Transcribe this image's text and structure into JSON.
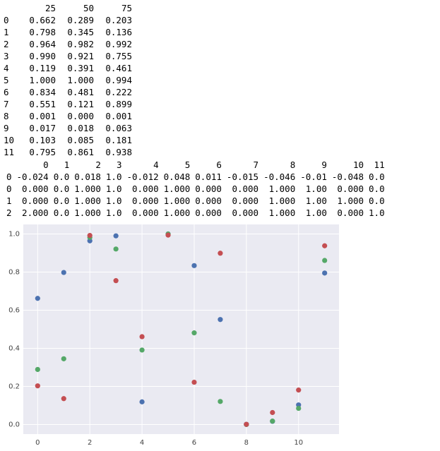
{
  "table1": {
    "header": [
      "25",
      "50",
      "75"
    ],
    "rows": [
      [
        "0",
        "0.662",
        "0.289",
        "0.203"
      ],
      [
        "1",
        "0.798",
        "0.345",
        "0.136"
      ],
      [
        "2",
        "0.964",
        "0.982",
        "0.992"
      ],
      [
        "3",
        "0.990",
        "0.921",
        "0.755"
      ],
      [
        "4",
        "0.119",
        "0.391",
        "0.461"
      ],
      [
        "5",
        "1.000",
        "1.000",
        "0.994"
      ],
      [
        "6",
        "0.834",
        "0.481",
        "0.222"
      ],
      [
        "7",
        "0.551",
        "0.121",
        "0.899"
      ],
      [
        "8",
        "0.001",
        "0.000",
        "0.001"
      ],
      [
        "9",
        "0.017",
        "0.018",
        "0.063"
      ],
      [
        "10",
        "0.103",
        "0.085",
        "0.181"
      ],
      [
        "11",
        "0.795",
        "0.861",
        "0.938"
      ]
    ]
  },
  "table2": {
    "header": [
      "0",
      "1",
      "2",
      "3",
      "4",
      "5",
      "6",
      "7",
      "8",
      "9",
      "10",
      "11"
    ],
    "rows": [
      [
        "0",
        "-0.024",
        "0.0",
        "0.018",
        "1.0",
        "-0.012",
        "0.048",
        "0.011",
        "-0.015",
        "-0.046",
        "-0.01",
        "-0.048",
        "0.0"
      ],
      [
        "0",
        "0.000",
        "0.0",
        "1.000",
        "1.0",
        "0.000",
        "1.000",
        "0.000",
        "0.000",
        "1.000",
        "1.00",
        "0.000",
        "0.0"
      ],
      [
        "1",
        "0.000",
        "0.0",
        "1.000",
        "1.0",
        "0.000",
        "1.000",
        "0.000",
        "0.000",
        "1.000",
        "1.00",
        "1.000",
        "0.0"
      ],
      [
        "2",
        "2.000",
        "0.0",
        "1.000",
        "1.0",
        "0.000",
        "1.000",
        "0.000",
        "0.000",
        "1.000",
        "1.00",
        "0.000",
        "1.0"
      ]
    ]
  },
  "chart_data": {
    "type": "scatter",
    "x": [
      0,
      1,
      2,
      3,
      4,
      5,
      6,
      7,
      8,
      9,
      10,
      11
    ],
    "series": [
      {
        "color": "#4c72b0",
        "values": [
          0.662,
          0.798,
          0.964,
          0.99,
          0.119,
          1.0,
          0.834,
          0.551,
          0.001,
          0.017,
          0.103,
          0.795
        ]
      },
      {
        "color": "#55a868",
        "values": [
          0.289,
          0.345,
          0.982,
          0.921,
          0.391,
          1.0,
          0.481,
          0.121,
          0.0,
          0.018,
          0.085,
          0.861
        ]
      },
      {
        "color": "#c44e52",
        "values": [
          0.203,
          0.136,
          0.992,
          0.755,
          0.461,
          0.994,
          0.222,
          0.899,
          0.001,
          0.063,
          0.181,
          0.938
        ]
      }
    ],
    "xlim": [
      -0.55,
      11.55
    ],
    "ylim": [
      -0.05,
      1.05
    ],
    "xticks": [
      0,
      2,
      4,
      6,
      8,
      10
    ],
    "yticks": [
      {
        "value": 0,
        "label": "0.0"
      },
      {
        "value": 0.2,
        "label": "0.2"
      },
      {
        "value": 0.4,
        "label": "0.4"
      },
      {
        "value": 0.6,
        "label": "0.6"
      },
      {
        "value": 0.8,
        "label": "0.8"
      },
      {
        "value": 1.0,
        "label": "1.0"
      }
    ],
    "grid": true,
    "background": "#eaeaf2"
  }
}
